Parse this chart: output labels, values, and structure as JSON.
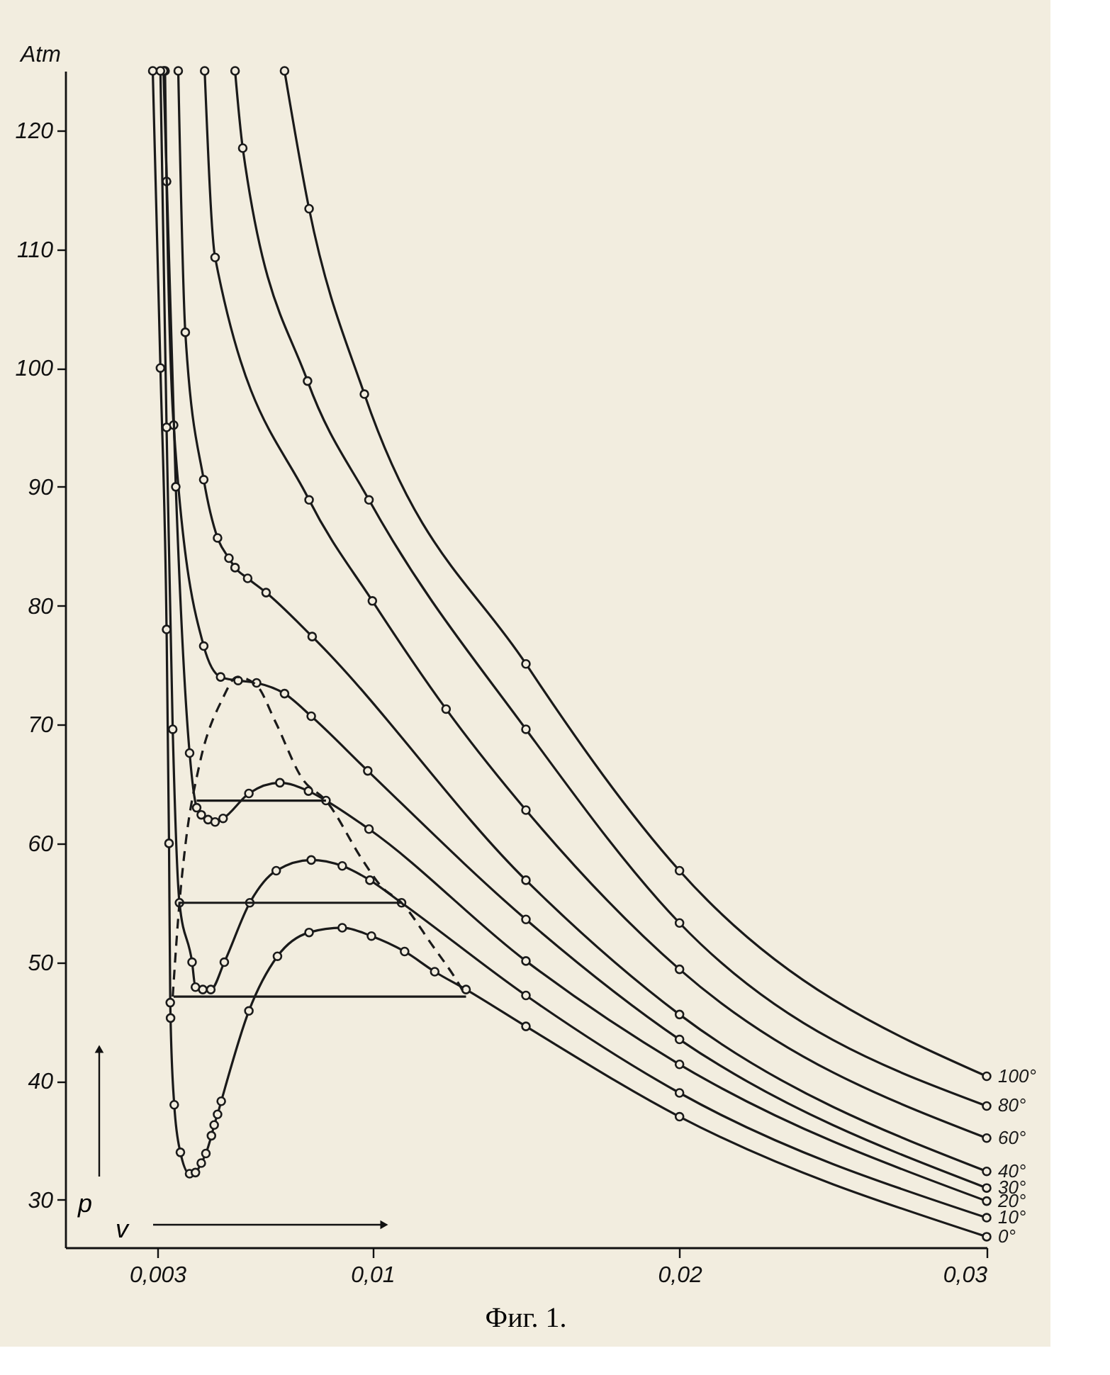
{
  "chart_data": {
    "type": "line",
    "ylabel": "Atm",
    "xlim": [
      0,
      0.03
    ],
    "ylim": [
      26,
      125
    ],
    "xticks": [
      {
        "value": 0.003,
        "label": "0,003"
      },
      {
        "value": 0.01,
        "label": "0,01"
      },
      {
        "value": 0.02,
        "label": "0,02"
      },
      {
        "value": 0.03,
        "label": "0,03"
      }
    ],
    "yticks": [
      30,
      40,
      50,
      60,
      70,
      80,
      90,
      100,
      110,
      120
    ],
    "grid": false,
    "marker": "circle",
    "line_style": "solid",
    "annotations": [
      "p",
      "v",
      "Фиг. 1."
    ],
    "series": [
      {
        "name": "100°",
        "color": "#1a1a1a",
        "x": [
          0.00714,
          0.00794,
          0.00974,
          0.015,
          0.02,
          0.03
        ],
        "values": [
          125,
          113.4,
          97.8,
          75.1,
          57.7,
          40.4
        ]
      },
      {
        "name": "80°",
        "color": "#1a1a1a",
        "x": [
          0.00553,
          0.00578,
          0.00789,
          0.00989,
          0.015,
          0.02,
          0.03
        ],
        "values": [
          125,
          118.5,
          98.9,
          88.9,
          69.6,
          53.3,
          37.9
        ]
      },
      {
        "name": "60°",
        "color": "#1a1a1a",
        "x": [
          0.00454,
          0.00488,
          0.00794,
          0.01,
          0.0124,
          0.015,
          0.02,
          0.03
        ],
        "values": [
          125,
          109.3,
          88.9,
          80.4,
          71.3,
          62.8,
          49.4,
          35.2
        ]
      },
      {
        "name": "40°",
        "color": "#1a1a1a",
        "x": [
          0.00368,
          0.00391,
          0.00451,
          0.00496,
          0.00533,
          0.00553,
          0.00594,
          0.00654,
          0.00804,
          0.015,
          0.02,
          0.03
        ],
        "values": [
          125,
          103.0,
          90.6,
          85.7,
          84.0,
          83.2,
          82.3,
          81.1,
          77.4,
          56.9,
          45.6,
          32.4
        ]
      },
      {
        "name": "30°",
        "color": "#1a1a1a",
        "x": [
          0.00325,
          0.0033,
          0.00353,
          0.00451,
          0.00506,
          0.00563,
          0.00623,
          0.00714,
          0.00801,
          0.00985,
          0.015,
          0.02,
          0.03
        ],
        "values": [
          125,
          115.7,
          95.2,
          76.6,
          74.0,
          73.7,
          73.5,
          72.6,
          70.7,
          66.1,
          53.6,
          43.5,
          31.0
        ]
      },
      {
        "name": "20°",
        "color": "#1a1a1a",
        "x": [
          0.0032,
          0.0036,
          0.00405,
          0.00428,
          0.00443,
          0.00465,
          0.00488,
          0.00514,
          0.00598,
          0.00699,
          0.00792,
          0.00849,
          0.00989,
          0.015,
          0.02,
          0.03
        ],
        "values": [
          125,
          90,
          67.6,
          63.0,
          62.4,
          62.0,
          61.8,
          62.1,
          64.2,
          65.1,
          64.4,
          63.6,
          61.2,
          50.1,
          41.4,
          29.9
        ]
      },
      {
        "name": "10°",
        "color": "#1a1a1a",
        "x": [
          0.0031,
          0.0033,
          0.0035,
          0.00372,
          0.00413,
          0.00424,
          0.00448,
          0.00474,
          0.00518,
          0.00601,
          0.00687,
          0.00801,
          0.00902,
          0.00992,
          0.01095,
          0.015,
          0.02,
          0.03
        ],
        "values": [
          125,
          95,
          69.6,
          55.0,
          50.0,
          47.9,
          47.7,
          47.7,
          50.0,
          55.0,
          57.7,
          58.6,
          58.1,
          56.9,
          55.0,
          47.2,
          39.0,
          28.5
        ]
      },
      {
        "name": "0°",
        "color": "#1a1a1a",
        "x": [
          0.00285,
          0.0031,
          0.0033,
          0.00338,
          0.00342,
          0.00343,
          0.00355,
          0.00375,
          0.00405,
          0.00424,
          0.00443,
          0.00458,
          0.00476,
          0.00485,
          0.00496,
          0.00508,
          0.00598,
          0.00691,
          0.00794,
          0.00902,
          0.00997,
          0.01105,
          0.01203,
          0.01305,
          0.015,
          0.02,
          0.03
        ],
        "values": [
          125,
          100,
          78,
          60,
          46.6,
          45.3,
          38,
          34,
          32.2,
          32.3,
          33.1,
          33.9,
          35.4,
          36.3,
          37.2,
          38.3,
          45.9,
          50.5,
          52.5,
          52.9,
          52.2,
          50.9,
          49.2,
          47.7,
          44.6,
          37.0,
          26.9
        ]
      },
      {
        "color": "#1a1a1a",
        "line_style": "dashed",
        "marker": "none",
        "x": [
          0.0035,
          0.00372,
          0.00391,
          0.00436,
          0.00511,
          0.0056,
          0.00623,
          0.00683,
          0.00773,
          0.00849,
          0.00968,
          0.01028,
          0.01095,
          0.01193,
          0.01283,
          0.01305
        ],
        "values": [
          47.1,
          55.0,
          59.8,
          66.5,
          72.1,
          74.0,
          73.3,
          70.3,
          65.4,
          63.6,
          58.6,
          56.4,
          55.0,
          51.5,
          48.1,
          47.1
        ]
      },
      {
        "color": "#1a1a1a",
        "marker": "none",
        "x": [
          0.00428,
          0.00849
        ],
        "values": [
          63.6,
          63.6
        ]
      },
      {
        "color": "#1a1a1a",
        "marker": "none",
        "x": [
          0.00372,
          0.01095
        ],
        "values": [
          55.0,
          55.0
        ]
      },
      {
        "color": "#1a1a1a",
        "marker": "none",
        "x": [
          0.00353,
          0.01305
        ],
        "values": [
          47.1,
          47.1
        ]
      }
    ]
  }
}
